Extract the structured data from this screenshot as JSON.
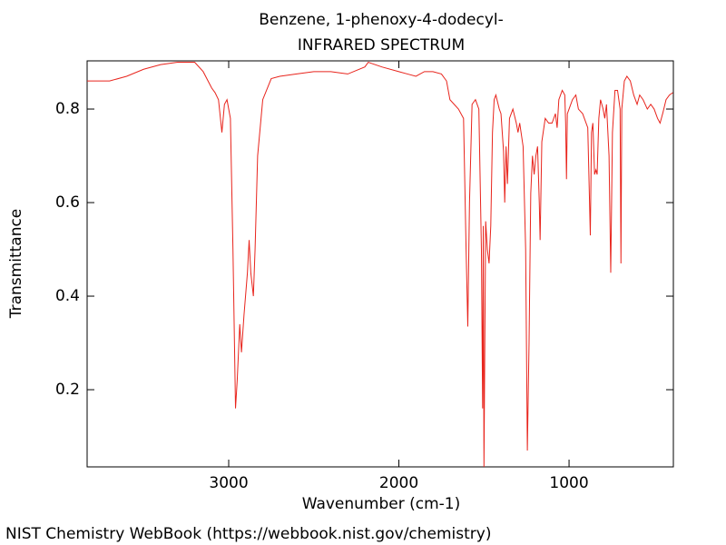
{
  "chart_data": {
    "type": "line",
    "title": "Benzene, 1-phenoxy-4-dodecyl-",
    "subtitle": "INFRARED SPECTRUM",
    "x_label": "Wavenumber (cm-1)",
    "y_label": "Transmittance",
    "footer": "NIST Chemistry WebBook (https://webbook.nist.gov/chemistry)",
    "color": "#e8241c",
    "xlim": [
      3832,
      387
    ],
    "ylim": [
      0.035,
      0.903
    ],
    "xticks": [
      3000,
      2000,
      1000
    ],
    "yticks": [
      0.2,
      0.4,
      0.6,
      0.8
    ],
    "x": [
      3832,
      3700,
      3600,
      3500,
      3400,
      3300,
      3200,
      3150,
      3100,
      3080,
      3060,
      3040,
      3025,
      3010,
      2990,
      2975,
      2960,
      2950,
      2935,
      2925,
      2910,
      2890,
      2880,
      2870,
      2855,
      2845,
      2830,
      2800,
      2750,
      2700,
      2600,
      2500,
      2400,
      2300,
      2200,
      2180,
      2100,
      2000,
      1950,
      1900,
      1850,
      1800,
      1750,
      1720,
      1700,
      1650,
      1620,
      1605,
      1595,
      1585,
      1570,
      1550,
      1530,
      1515,
      1508,
      1504,
      1500,
      1490,
      1480,
      1470,
      1460,
      1450,
      1440,
      1430,
      1410,
      1400,
      1385,
      1378,
      1370,
      1362,
      1350,
      1330,
      1310,
      1300,
      1290,
      1270,
      1255,
      1245,
      1235,
      1225,
      1215,
      1205,
      1195,
      1185,
      1175,
      1170,
      1160,
      1140,
      1120,
      1100,
      1080,
      1070,
      1060,
      1040,
      1025,
      1020,
      1015,
      1010,
      1000,
      980,
      960,
      945,
      920,
      890,
      875,
      868,
      860,
      850,
      842,
      835,
      825,
      815,
      800,
      790,
      780,
      765,
      755,
      745,
      730,
      715,
      700,
      695,
      690,
      675,
      660,
      640,
      620,
      600,
      585,
      565,
      540,
      520,
      500,
      480,
      465,
      450,
      430,
      410,
      390
    ],
    "values": [
      0.86,
      0.86,
      0.87,
      0.885,
      0.895,
      0.9,
      0.9,
      0.88,
      0.845,
      0.835,
      0.82,
      0.75,
      0.81,
      0.82,
      0.78,
      0.5,
      0.16,
      0.22,
      0.34,
      0.28,
      0.36,
      0.45,
      0.52,
      0.45,
      0.4,
      0.5,
      0.7,
      0.82,
      0.865,
      0.87,
      0.875,
      0.88,
      0.88,
      0.875,
      0.89,
      0.9,
      0.89,
      0.88,
      0.875,
      0.87,
      0.88,
      0.88,
      0.875,
      0.86,
      0.82,
      0.8,
      0.78,
      0.5,
      0.335,
      0.6,
      0.81,
      0.82,
      0.8,
      0.5,
      0.16,
      0.55,
      0.035,
      0.56,
      0.5,
      0.47,
      0.55,
      0.75,
      0.82,
      0.83,
      0.8,
      0.79,
      0.71,
      0.6,
      0.72,
      0.64,
      0.78,
      0.8,
      0.77,
      0.75,
      0.77,
      0.72,
      0.5,
      0.07,
      0.3,
      0.62,
      0.7,
      0.66,
      0.7,
      0.72,
      0.6,
      0.52,
      0.73,
      0.78,
      0.77,
      0.77,
      0.79,
      0.76,
      0.82,
      0.84,
      0.83,
      0.77,
      0.65,
      0.79,
      0.8,
      0.82,
      0.83,
      0.8,
      0.79,
      0.76,
      0.53,
      0.75,
      0.77,
      0.66,
      0.67,
      0.66,
      0.78,
      0.82,
      0.8,
      0.78,
      0.81,
      0.7,
      0.45,
      0.75,
      0.84,
      0.84,
      0.8,
      0.47,
      0.8,
      0.86,
      0.87,
      0.86,
      0.83,
      0.81,
      0.83,
      0.82,
      0.8,
      0.81,
      0.8,
      0.78,
      0.77,
      0.79,
      0.82,
      0.83,
      0.835
    ]
  }
}
